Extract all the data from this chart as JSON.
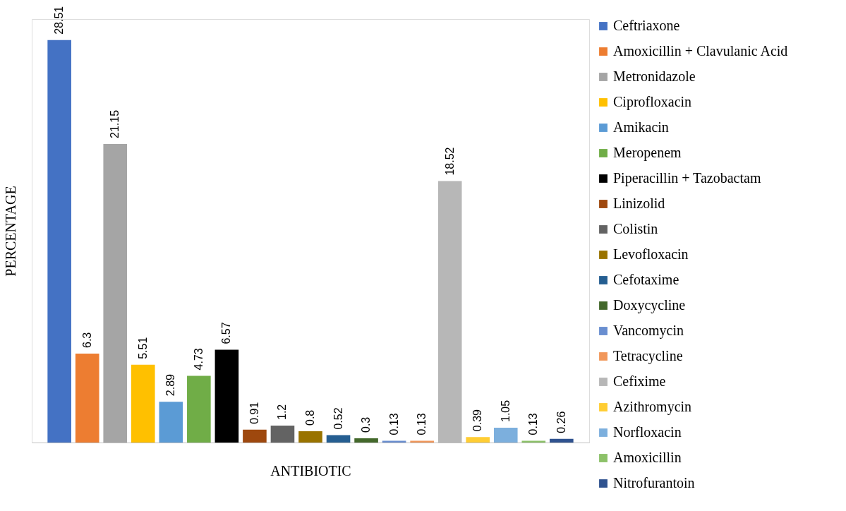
{
  "chart_data": {
    "type": "bar",
    "xlabel": "ANTIBIOTIC",
    "ylabel": "PERCENTAGE",
    "categories": [
      null
    ],
    "series": [
      {
        "name": "Ceftriaxone",
        "color": "#4472c4",
        "values": [
          28.51
        ]
      },
      {
        "name": "Amoxicillin + Clavulanic Acid",
        "color": "#ed7d31",
        "values": [
          6.3
        ]
      },
      {
        "name": "Metronidazole",
        "color": "#a5a5a5",
        "values": [
          21.15
        ]
      },
      {
        "name": "Ciprofloxacin",
        "color": "#ffc000",
        "values": [
          5.51
        ]
      },
      {
        "name": "Amikacin",
        "color": "#5b9bd5",
        "values": [
          2.89
        ]
      },
      {
        "name": "Meropenem",
        "color": "#70ad47",
        "values": [
          4.73
        ]
      },
      {
        "name": "Piperacillin + Tazobactam",
        "color": "#000000",
        "values": [
          6.57
        ]
      },
      {
        "name": "Linizolid",
        "color": "#9e480e",
        "values": [
          0.91
        ]
      },
      {
        "name": "Colistin",
        "color": "#636363",
        "values": [
          1.2
        ]
      },
      {
        "name": "Levofloxacin",
        "color": "#997300",
        "values": [
          0.8
        ]
      },
      {
        "name": "Cefotaxime",
        "color": "#255e91",
        "values": [
          0.52
        ]
      },
      {
        "name": "Doxycycline",
        "color": "#43682b",
        "values": [
          0.3
        ]
      },
      {
        "name": "Vancomycin",
        "color": "#698ed0",
        "values": [
          0.13
        ]
      },
      {
        "name": "Tetracycline",
        "color": "#f1975a",
        "values": [
          0.13
        ]
      },
      {
        "name": "Cefixime",
        "color": "#b7b7b7",
        "values": [
          18.52
        ]
      },
      {
        "name": "Azithromycin",
        "color": "#ffcd33",
        "values": [
          0.39
        ]
      },
      {
        "name": "Norfloxacin",
        "color": "#7cafdd",
        "values": [
          1.05
        ]
      },
      {
        "name": "Amoxicillin",
        "color": "#8cc168",
        "values": [
          0.13
        ]
      },
      {
        "name": "Nitrofurantoin",
        "color": "#2f528f",
        "values": [
          0.26
        ]
      }
    ],
    "data_labels": true,
    "legend": "right",
    "tick_labels": false,
    "grid": false
  }
}
